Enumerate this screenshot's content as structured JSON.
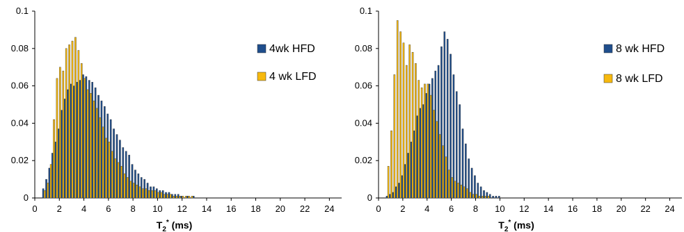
{
  "colors": {
    "hfd": "#1F4E8C",
    "lfd": "#F7B90E",
    "bar_edge": "#333333"
  },
  "chart_data": [
    {
      "type": "bar",
      "xlabel": {
        "main": "T",
        "sub": "2",
        "sup": "*",
        "unit": " (ms)"
      },
      "ylabel": "",
      "xlim": [
        0,
        25
      ],
      "ylim": [
        0,
        0.1
      ],
      "xticks": [
        0,
        2,
        4,
        6,
        8,
        10,
        12,
        14,
        16,
        18,
        20,
        22,
        24
      ],
      "yticks": [
        0,
        0.02,
        0.04,
        0.06,
        0.08,
        0.1
      ],
      "ytick_labels": [
        "0",
        "0.02",
        "0.04",
        "0.06",
        "0.08",
        "0.1"
      ],
      "legend_position": "right",
      "bin_start": 0.75,
      "bin_width": 0.25,
      "series": [
        {
          "name": "4wk HFD",
          "color_key": "hfd",
          "values": [
            0.005,
            0.01,
            0.016,
            0.024,
            0.03,
            0.037,
            0.047,
            0.053,
            0.058,
            0.061,
            0.06,
            0.062,
            0.063,
            0.066,
            0.065,
            0.063,
            0.062,
            0.059,
            0.055,
            0.052,
            0.049,
            0.045,
            0.042,
            0.037,
            0.034,
            0.031,
            0.027,
            0.025,
            0.023,
            0.018,
            0.015,
            0.013,
            0.011,
            0.01,
            0.008,
            0.006,
            0.006,
            0.005,
            0.004,
            0.004,
            0.003,
            0.003,
            0.002,
            0.002,
            0.002,
            0.001,
            0,
            0.001,
            0,
            0.001,
            0,
            0,
            0,
            0,
            0,
            0,
            0,
            0,
            0,
            0,
            0,
            0,
            0,
            0,
            0,
            0,
            0,
            0,
            0,
            0,
            0,
            0,
            0,
            0,
            0,
            0,
            0,
            0,
            0,
            0,
            0,
            0,
            0,
            0,
            0,
            0,
            0
          ]
        },
        {
          "name": "4 wk LFD",
          "color_key": "lfd",
          "values": [
            0.004,
            0.008,
            0.018,
            0.042,
            0.064,
            0.07,
            0.068,
            0.08,
            0.082,
            0.084,
            0.086,
            0.079,
            0.072,
            0.064,
            0.058,
            0.056,
            0.052,
            0.048,
            0.043,
            0.038,
            0.032,
            0.03,
            0.025,
            0.021,
            0.019,
            0.017,
            0.013,
            0.011,
            0.009,
            0.008,
            0.007,
            0.006,
            0.005,
            0.005,
            0.004,
            0.004,
            0.004,
            0.003,
            0.003,
            0.002,
            0.002,
            0.002,
            0.001,
            0.001,
            0.001,
            0.001,
            0.001,
            0.001,
            0.001,
            0,
            0,
            0,
            0,
            0,
            0,
            0,
            0,
            0,
            0,
            0,
            0,
            0,
            0,
            0,
            0,
            0,
            0,
            0,
            0,
            0,
            0,
            0,
            0,
            0,
            0,
            0,
            0,
            0,
            0,
            0,
            0,
            0,
            0,
            0,
            0,
            0,
            0
          ]
        }
      ]
    },
    {
      "type": "bar",
      "xlabel": {
        "main": "T",
        "sub": "2",
        "sup": "*",
        "unit": " (ms)"
      },
      "ylabel": "",
      "xlim": [
        0,
        25
      ],
      "ylim": [
        0,
        0.1
      ],
      "xticks": [
        0,
        2,
        4,
        6,
        8,
        10,
        12,
        14,
        16,
        18,
        20,
        22,
        24
      ],
      "yticks": [
        0,
        0.02,
        0.04,
        0.06,
        0.08,
        0.1
      ],
      "ytick_labels": [
        "0",
        "0.02",
        "0.04",
        "0.06",
        "0.08",
        "0.1"
      ],
      "legend_position": "right",
      "bin_start": 0.75,
      "bin_width": 0.25,
      "series": [
        {
          "name": "8 wk HFD",
          "color_key": "hfd",
          "values": [
            0.001,
            0.002,
            0.003,
            0.006,
            0.008,
            0.012,
            0.018,
            0.024,
            0.03,
            0.036,
            0.044,
            0.048,
            0.05,
            0.056,
            0.061,
            0.064,
            0.068,
            0.071,
            0.081,
            0.089,
            0.085,
            0.077,
            0.066,
            0.057,
            0.05,
            0.037,
            0.029,
            0.021,
            0.016,
            0.012,
            0.008,
            0.006,
            0.004,
            0.003,
            0.002,
            0.001,
            0.001,
            0.001,
            0,
            0,
            0,
            0,
            0,
            0,
            0,
            0,
            0,
            0,
            0,
            0,
            0,
            0,
            0,
            0,
            0,
            0,
            0,
            0,
            0,
            0,
            0,
            0,
            0,
            0,
            0,
            0,
            0,
            0,
            0,
            0,
            0,
            0,
            0,
            0,
            0,
            0,
            0,
            0,
            0,
            0,
            0,
            0,
            0,
            0,
            0,
            0,
            0
          ]
        },
        {
          "name": "8 wk LFD",
          "color_key": "lfd",
          "values": [
            0.017,
            0.036,
            0.066,
            0.095,
            0.089,
            0.083,
            0.071,
            0.082,
            0.078,
            0.072,
            0.063,
            0.059,
            0.061,
            0.061,
            0.055,
            0.047,
            0.041,
            0.034,
            0.028,
            0.022,
            0.015,
            0.011,
            0.009,
            0.008,
            0.007,
            0.006,
            0.005,
            0.003,
            0.002,
            0.002,
            0.001,
            0.001,
            0.001,
            0.001,
            0,
            0,
            0,
            0,
            0,
            0,
            0,
            0,
            0,
            0,
            0,
            0,
            0,
            0,
            0,
            0,
            0,
            0,
            0,
            0,
            0,
            0,
            0,
            0,
            0,
            0,
            0,
            0,
            0,
            0,
            0,
            0,
            0,
            0,
            0,
            0,
            0,
            0,
            0,
            0,
            0,
            0,
            0,
            0,
            0,
            0,
            0,
            0,
            0,
            0,
            0,
            0,
            0
          ]
        }
      ]
    }
  ]
}
